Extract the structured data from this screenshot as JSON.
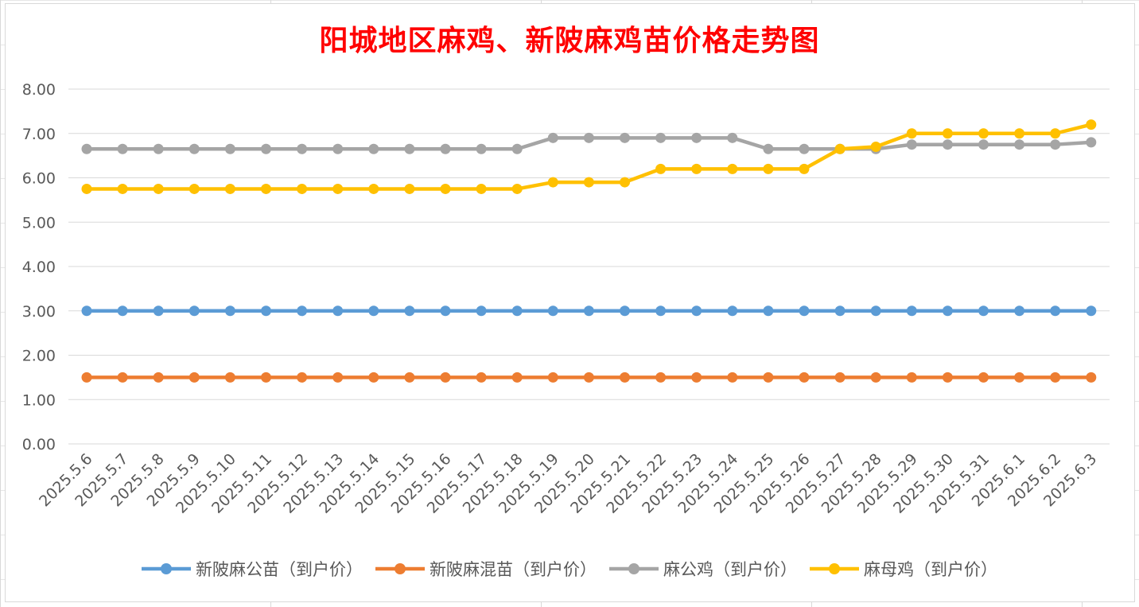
{
  "chart_data": {
    "type": "line",
    "title": "阳城地区麻鸡、新陂麻鸡苗价格走势图",
    "xlabel": "",
    "ylabel": "",
    "ylim": [
      0,
      8
    ],
    "ytick_labels": [
      "0.00",
      "1.00",
      "2.00",
      "3.00",
      "4.00",
      "5.00",
      "6.00",
      "7.00",
      "8.00"
    ],
    "grid": true,
    "legend_position": "bottom",
    "categories": [
      "2025.5.6",
      "2025.5.7",
      "2025.5.8",
      "2025.5.9",
      "2025.5.10",
      "2025.5.11",
      "2025.5.12",
      "2025.5.13",
      "2025.5.14",
      "2025.5.15",
      "2025.5.16",
      "2025.5.17",
      "2025.5.18",
      "2025.5.19",
      "2025.5.20",
      "2025.5.21",
      "2025.5.22",
      "2025.5.23",
      "2025.5.24",
      "2025.5.25",
      "2025.5.26",
      "2025.5.27",
      "2025.5.28",
      "2025.5.29",
      "2025.5.30",
      "2025.5.31",
      "2025.6.1",
      "2025.6.2",
      "2025.6.3"
    ],
    "series": [
      {
        "name": "新陂麻公苗（到户价）",
        "color": "#5b9bd5",
        "values": [
          3,
          3,
          3,
          3,
          3,
          3,
          3,
          3,
          3,
          3,
          3,
          3,
          3,
          3,
          3,
          3,
          3,
          3,
          3,
          3,
          3,
          3,
          3,
          3,
          3,
          3,
          3,
          3,
          3
        ]
      },
      {
        "name": "新陂麻混苗（到户价）",
        "color": "#ed7d31",
        "values": [
          1.5,
          1.5,
          1.5,
          1.5,
          1.5,
          1.5,
          1.5,
          1.5,
          1.5,
          1.5,
          1.5,
          1.5,
          1.5,
          1.5,
          1.5,
          1.5,
          1.5,
          1.5,
          1.5,
          1.5,
          1.5,
          1.5,
          1.5,
          1.5,
          1.5,
          1.5,
          1.5,
          1.5,
          1.5
        ]
      },
      {
        "name": "麻公鸡（到户价）",
        "color": "#a5a5a5",
        "values": [
          6.65,
          6.65,
          6.65,
          6.65,
          6.65,
          6.65,
          6.65,
          6.65,
          6.65,
          6.65,
          6.65,
          6.65,
          6.65,
          6.9,
          6.9,
          6.9,
          6.9,
          6.9,
          6.9,
          6.65,
          6.65,
          6.65,
          6.65,
          6.75,
          6.75,
          6.75,
          6.75,
          6.75,
          6.8
        ]
      },
      {
        "name": "麻母鸡（到户价）",
        "color": "#ffc000",
        "values": [
          5.75,
          5.75,
          5.75,
          5.75,
          5.75,
          5.75,
          5.75,
          5.75,
          5.75,
          5.75,
          5.75,
          5.75,
          5.75,
          5.9,
          5.9,
          5.9,
          6.2,
          6.2,
          6.2,
          6.2,
          6.2,
          6.65,
          6.7,
          7.0,
          7.0,
          7.0,
          7.0,
          7.0,
          7.2
        ]
      }
    ]
  }
}
